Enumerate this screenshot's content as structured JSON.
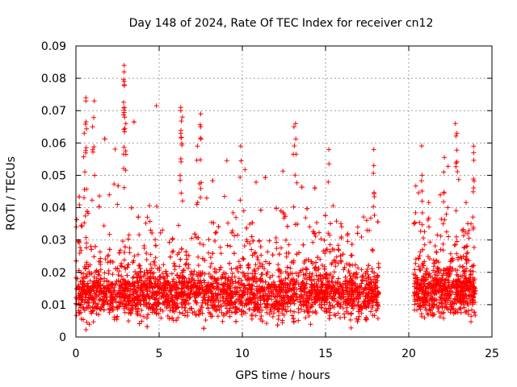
{
  "chart_data": {
    "type": "scatter",
    "title": "Day 148 of 2024, Rate Of TEC Index for receiver cn12",
    "xlabel": "GPS time / hours",
    "ylabel": "ROTI / TECUs",
    "xlim": [
      0,
      25
    ],
    "ylim": [
      0,
      0.09
    ],
    "xticks": [
      0,
      5,
      10,
      15,
      20,
      25
    ],
    "xtick_labels": [
      "0",
      "5",
      "10",
      "15",
      "20",
      "25"
    ],
    "yticks": [
      0,
      0.01,
      0.02,
      0.03,
      0.04,
      0.05,
      0.06,
      0.07,
      0.08,
      0.09
    ],
    "ytick_labels": [
      "0",
      "0.01",
      "0.02",
      "0.03",
      "0.04",
      "0.05",
      "0.06",
      "0.07",
      "0.08",
      "0.09"
    ],
    "grid": true,
    "marker": "plus",
    "color": "#ff0000",
    "series": [
      {
        "name": "ROTI",
        "segments": [
          {
            "x_start": 0.0,
            "x_end": 18.2,
            "median": 0.013,
            "typical_range": [
              0.005,
              0.03
            ]
          },
          {
            "x_start": 20.3,
            "x_end": 24.0,
            "median": 0.014,
            "typical_range": [
              0.005,
              0.03
            ]
          }
        ],
        "data_gap": [
          18.2,
          20.3
        ],
        "notable_peaks": [
          {
            "x": 0.6,
            "y": 0.074
          },
          {
            "x": 0.6,
            "y": 0.073
          },
          {
            "x": 1.1,
            "y": 0.073
          },
          {
            "x": 1.0,
            "y": 0.065
          },
          {
            "x": 0.5,
            "y": 0.063
          },
          {
            "x": 2.9,
            "y": 0.084
          },
          {
            "x": 2.9,
            "y": 0.082
          },
          {
            "x": 2.9,
            "y": 0.079
          },
          {
            "x": 2.9,
            "y": 0.078
          },
          {
            "x": 2.9,
            "y": 0.071
          },
          {
            "x": 3.0,
            "y": 0.066
          },
          {
            "x": 6.3,
            "y": 0.071
          },
          {
            "x": 6.3,
            "y": 0.07
          },
          {
            "x": 6.4,
            "y": 0.068
          },
          {
            "x": 6.3,
            "y": 0.063
          },
          {
            "x": 7.5,
            "y": 0.069
          },
          {
            "x": 7.5,
            "y": 0.065
          },
          {
            "x": 7.3,
            "y": 0.059
          },
          {
            "x": 9.9,
            "y": 0.059
          },
          {
            "x": 13.2,
            "y": 0.066
          },
          {
            "x": 13.1,
            "y": 0.065
          },
          {
            "x": 15.2,
            "y": 0.058
          },
          {
            "x": 17.9,
            "y": 0.058
          },
          {
            "x": 17.9,
            "y": 0.053
          },
          {
            "x": 22.8,
            "y": 0.066
          },
          {
            "x": 22.9,
            "y": 0.063
          },
          {
            "x": 23.9,
            "y": 0.059
          },
          {
            "x": 23.9,
            "y": 0.057
          },
          {
            "x": 22.1,
            "y": 0.051
          },
          {
            "x": 20.8,
            "y": 0.05
          }
        ]
      }
    ]
  }
}
